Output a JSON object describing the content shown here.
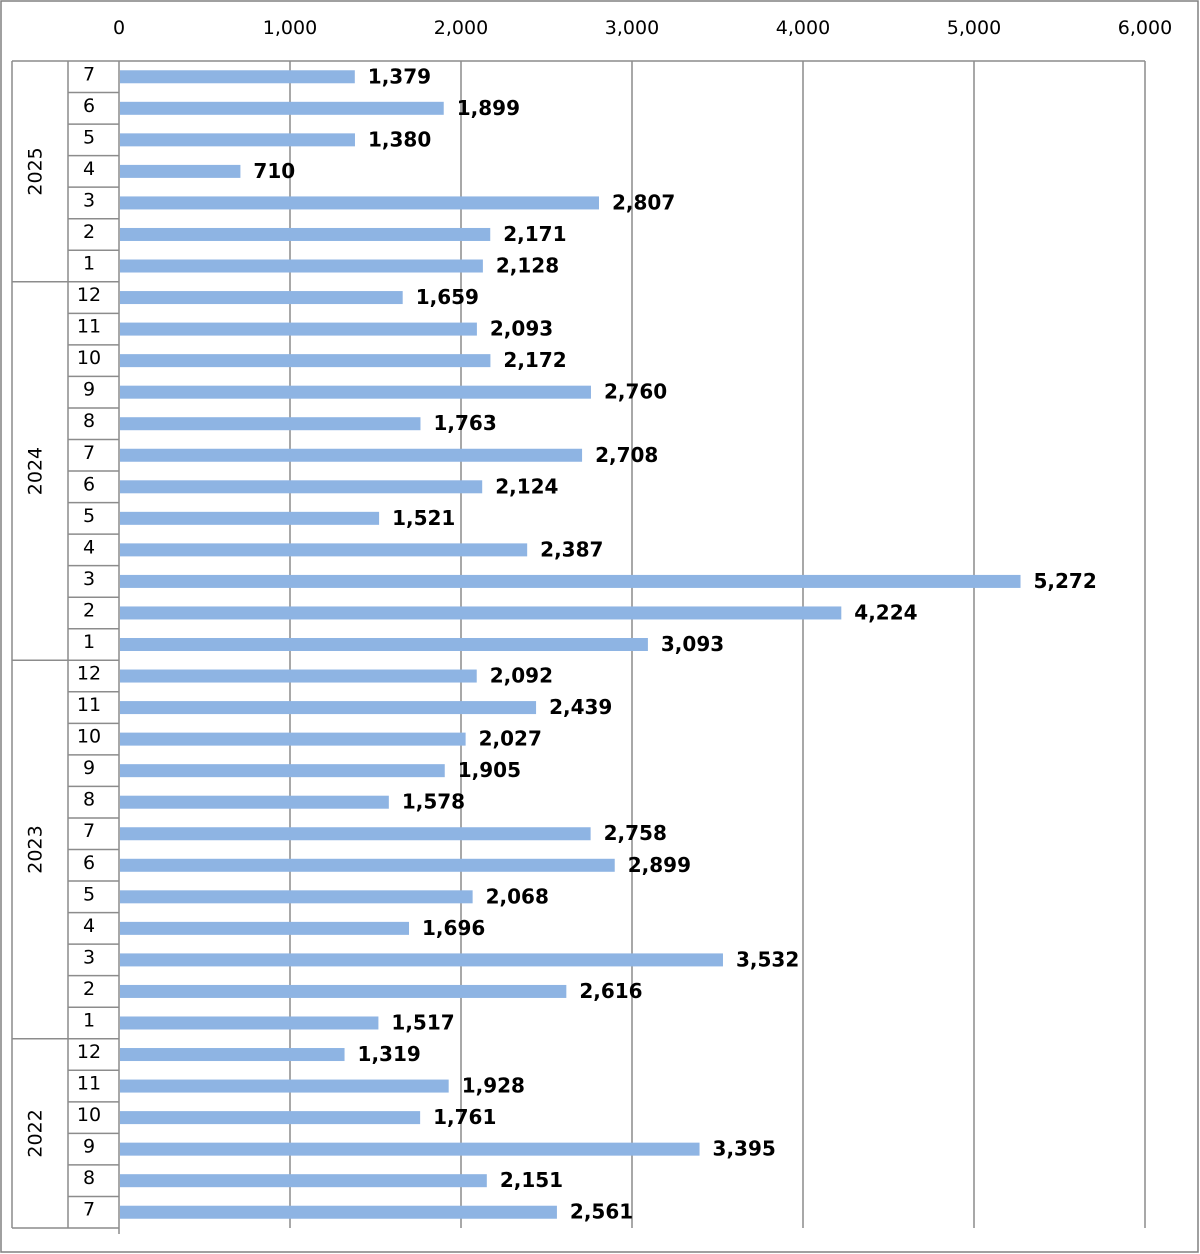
{
  "chart_data": {
    "type": "bar",
    "orientation": "horizontal",
    "title": "",
    "xlabel": "",
    "ylabel": "",
    "xlim": [
      0,
      6000
    ],
    "x_ticks": [
      "0",
      "1,000",
      "2,000",
      "3,000",
      "4,000",
      "5,000",
      "6,000"
    ],
    "x_tick_values": [
      0,
      1000,
      2000,
      3000,
      4000,
      5000,
      6000
    ],
    "grid": true,
    "bar_color": "#8EB4E3",
    "groups": [
      {
        "year": "2025",
        "months": [
          "7",
          "6",
          "5",
          "4",
          "3",
          "2",
          "1"
        ],
        "values": [
          1379,
          1899,
          1380,
          710,
          2807,
          2171,
          2128
        ],
        "labels": [
          "1,379",
          "1,899",
          "1,380",
          "710",
          "2,807",
          "2,171",
          "2,128"
        ]
      },
      {
        "year": "2024",
        "months": [
          "12",
          "11",
          "10",
          "9",
          "8",
          "7",
          "6",
          "5",
          "4",
          "3",
          "2",
          "1"
        ],
        "values": [
          1659,
          2093,
          2172,
          2760,
          1763,
          2708,
          2124,
          1521,
          2387,
          5272,
          4224,
          3093
        ],
        "labels": [
          "1,659",
          "2,093",
          "2,172",
          "2,760",
          "1,763",
          "2,708",
          "2,124",
          "1,521",
          "2,387",
          "5,272",
          "4,224",
          "3,093"
        ]
      },
      {
        "year": "2023",
        "months": [
          "12",
          "11",
          "10",
          "9",
          "8",
          "7",
          "6",
          "5",
          "4",
          "3",
          "2",
          "1"
        ],
        "values": [
          2092,
          2439,
          2027,
          1905,
          1578,
          2758,
          2899,
          2068,
          1696,
          3532,
          2616,
          1517
        ],
        "labels": [
          "2,092",
          "2,439",
          "2,027",
          "1,905",
          "1,578",
          "2,758",
          "2,899",
          "2,068",
          "1,696",
          "3,532",
          "2,616",
          "1,517"
        ]
      },
      {
        "year": "2022",
        "months": [
          "12",
          "11",
          "10",
          "9",
          "8",
          "7"
        ],
        "values": [
          1319,
          1928,
          1761,
          3395,
          2151,
          2561
        ],
        "labels": [
          "1,319",
          "1,928",
          "1,761",
          "3,395",
          "2,151",
          "2,561"
        ]
      }
    ]
  }
}
